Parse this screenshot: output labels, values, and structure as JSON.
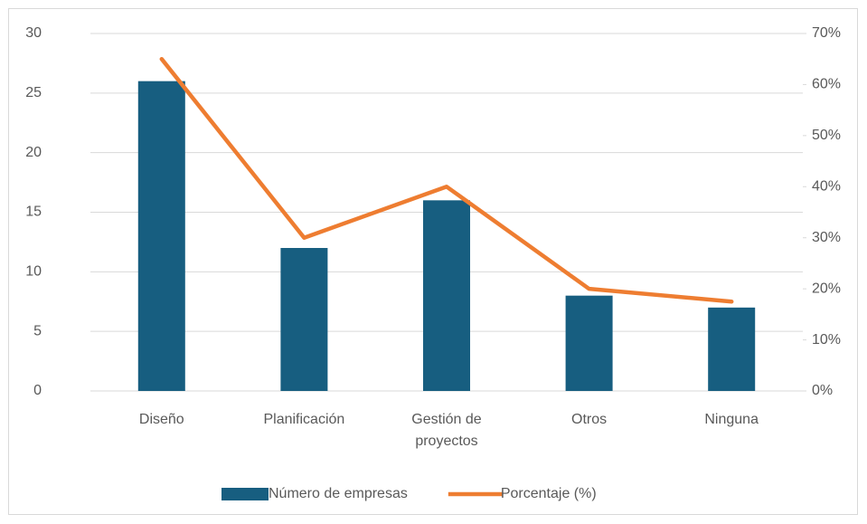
{
  "chart_data": {
    "type": "bar",
    "categories": [
      "Diseño",
      "Planificación",
      "Gestión de proyectos",
      "Otros",
      "Ninguna"
    ],
    "series": [
      {
        "name": "Número de empresas",
        "type": "bar",
        "color": "#175e80",
        "values": [
          26,
          12,
          16,
          8,
          7
        ]
      },
      {
        "name": "Porcentaje (%)",
        "type": "line",
        "axis": "y2",
        "color": "#ee7d31",
        "values": [
          65,
          30,
          40,
          20,
          17.5
        ]
      }
    ],
    "ylim": [
      0,
      30
    ],
    "yticks": [
      0,
      5,
      10,
      15,
      20,
      25,
      30
    ],
    "y2lim": [
      0,
      70
    ],
    "y2ticks": [
      {
        "value": 0,
        "label": "0%"
      },
      {
        "value": 10,
        "label": "10%"
      },
      {
        "value": 20,
        "label": "20%"
      },
      {
        "value": 30,
        "label": "30%"
      },
      {
        "value": 40,
        "label": "40%"
      },
      {
        "value": 50,
        "label": "50%"
      },
      {
        "value": 60,
        "label": "60%"
      },
      {
        "value": 70,
        "label": "70%"
      }
    ],
    "grid": true,
    "legend": "bottom"
  }
}
